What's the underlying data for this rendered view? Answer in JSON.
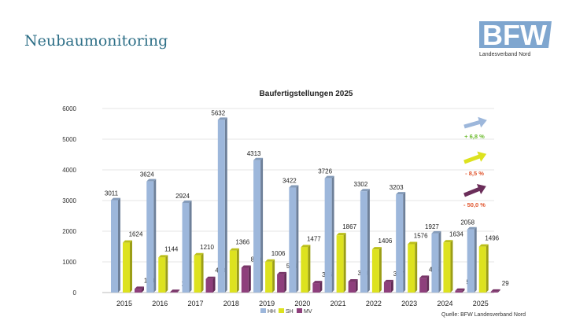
{
  "page_title": "Neubaumonitoring",
  "logo": {
    "text": "BFW",
    "subtitle": "Landesverband Nord"
  },
  "source": "Quelle: BFW Landesverband Nord",
  "colors": {
    "HH": "#9db7db",
    "SH": "#dde21f",
    "MV": "#8e3f7c",
    "axis": "#444444"
  },
  "trends": [
    {
      "series": "HH",
      "label": "+ 6,8 %",
      "color": "#9db7db",
      "label_color": "#6cbb2e"
    },
    {
      "series": "SH",
      "label": "- 8,5 %",
      "color": "#dde21f",
      "label_color": "#e0532b"
    },
    {
      "series": "MV",
      "label": "- 50,0 %",
      "color": "#6b2e5a",
      "label_color": "#e0532b"
    }
  ],
  "chart_data": {
    "type": "bar",
    "title": "Baufertigstellungen 2025",
    "categories": [
      "2015",
      "2016",
      "2017",
      "2018",
      "2019",
      "2020",
      "2021",
      "2022",
      "2023",
      "2024",
      "2025"
    ],
    "series": [
      {
        "name": "HH",
        "values": [
          3011,
          3624,
          2924,
          5632,
          4313,
          3422,
          3726,
          3302,
          3203,
          1927,
          2058
        ]
      },
      {
        "name": "SH",
        "values": [
          1624,
          1144,
          1210,
          1366,
          1006,
          1477,
          1867,
          1406,
          1576,
          1634,
          1496
        ]
      },
      {
        "name": "MV",
        "values": [
          120,
          19,
          443,
          809,
          594,
          306,
          359,
          337,
          476,
          58,
          29
        ]
      }
    ],
    "yticks": [
      0,
      1000,
      2000,
      3000,
      4000,
      5000,
      6000
    ],
    "ylim": [
      0,
      6000
    ],
    "xlabel": "",
    "ylabel": "",
    "legend": "bottom",
    "grid": true
  }
}
